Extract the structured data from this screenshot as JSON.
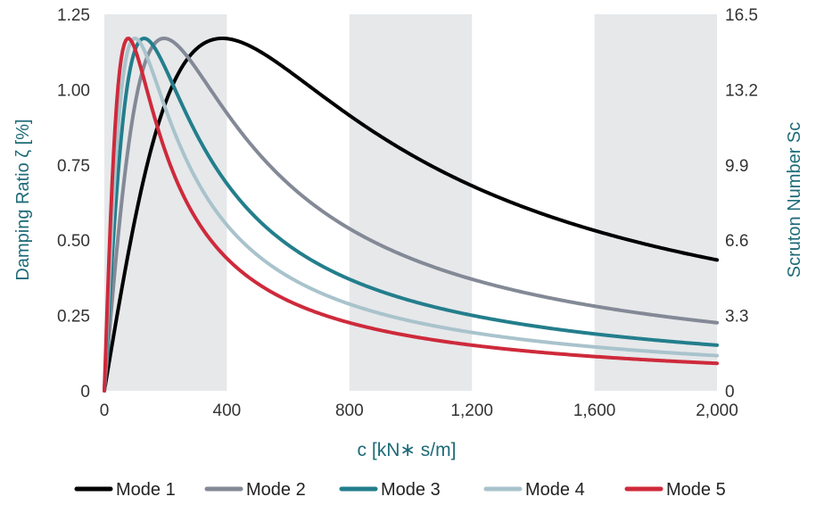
{
  "chart_data": {
    "type": "line",
    "xlabel": "c [kN∗ s/m]",
    "ylabel": "Damping Ratio ζ [%]",
    "y2label": "Scruton Number Sc",
    "xlim": [
      0,
      2000
    ],
    "ylim": [
      0,
      1.25
    ],
    "y2lim": [
      0,
      16.5
    ],
    "x_ticks": [
      0,
      400,
      800,
      1200,
      1600,
      2000
    ],
    "x_tick_labels": [
      "0",
      "400",
      "800",
      "1,200",
      "1,600",
      "2,000"
    ],
    "y_ticks": [
      0,
      0.25,
      0.5,
      0.75,
      1.0,
      1.25
    ],
    "y_tick_labels": [
      "0",
      "0.25",
      "0.50",
      "0.75",
      "1.00",
      "1.25"
    ],
    "y2_tick_labels": [
      "0",
      "3.3",
      "6.6",
      "9.9",
      "13.2",
      "16.5"
    ],
    "shaded_bands": [
      [
        0,
        400
      ],
      [
        800,
        1200
      ],
      [
        1600,
        2000
      ]
    ],
    "grid": false,
    "legend_position": "bottom",
    "series": [
      {
        "name": "Mode 1",
        "color": "#000000",
        "peak": 1.17,
        "c_opt": 385
      },
      {
        "name": "Mode 2",
        "color": "#838996",
        "peak": 1.17,
        "c_opt": 195
      },
      {
        "name": "Mode 3",
        "color": "#237E8C",
        "peak": 1.17,
        "c_opt": 130
      },
      {
        "name": "Mode 4",
        "color": "#A9C3CC",
        "peak": 1.17,
        "c_opt": 100
      },
      {
        "name": "Mode 5",
        "color": "#CE2A3B",
        "peak": 1.17,
        "c_opt": 78
      }
    ]
  },
  "colors": {
    "band": "#E6E8EA",
    "axis_title": "#1E6B78",
    "tick_text": "#333333"
  }
}
